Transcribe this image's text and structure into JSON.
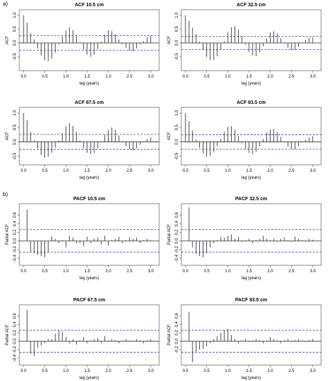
{
  "section_labels": {
    "a": "a)",
    "b": "b)"
  },
  "colors": {
    "ci_line": "#3b3bd6",
    "bars": "#444444",
    "frame": "#555555",
    "zero": "#222222"
  },
  "chart_data": [
    {
      "type": "bar",
      "title": "ACF 10.5 cm",
      "xlabel": "lag (years)",
      "ylabel": "ACF",
      "xlim": [
        0,
        3.1
      ],
      "ylim": [
        -0.9,
        1.1
      ],
      "xticks": [
        0.0,
        0.5,
        1.0,
        1.5,
        2.0,
        2.5,
        3.0
      ],
      "yticks": [
        -0.5,
        0.0,
        0.5,
        1.0
      ],
      "ci": 0.26,
      "lag_step": 0.0833,
      "values": [
        1.0,
        0.73,
        0.35,
        0.12,
        -0.2,
        -0.45,
        -0.62,
        -0.66,
        -0.57,
        -0.35,
        -0.05,
        0.23,
        0.45,
        0.56,
        0.46,
        0.28,
        0.02,
        -0.24,
        -0.42,
        -0.5,
        -0.42,
        -0.22,
        0.05,
        0.3,
        0.46,
        0.42,
        0.32,
        0.13,
        -0.05,
        -0.18,
        -0.28,
        -0.3,
        -0.2,
        -0.05,
        0.07,
        0.2,
        0.25
      ]
    },
    {
      "type": "bar",
      "title": "ACF 32.5 cm",
      "xlabel": "lag (years)",
      "ylabel": "ACF",
      "xlim": [
        0,
        3.1
      ],
      "ylim": [
        -0.9,
        1.1
      ],
      "xticks": [
        0.0,
        0.5,
        1.0,
        1.5,
        2.0,
        2.5,
        3.0
      ],
      "yticks": [
        -0.5,
        0.0,
        0.5,
        1.0
      ],
      "ci": 0.24,
      "lag_step": 0.0833,
      "values": [
        1.0,
        0.8,
        0.55,
        0.32,
        0.05,
        -0.25,
        -0.5,
        -0.62,
        -0.62,
        -0.48,
        -0.23,
        0.07,
        0.38,
        0.57,
        0.6,
        0.48,
        0.25,
        -0.05,
        -0.32,
        -0.45,
        -0.48,
        -0.35,
        -0.12,
        0.15,
        0.38,
        0.42,
        0.35,
        0.18,
        -0.02,
        -0.17,
        -0.25,
        -0.25,
        -0.15,
        -0.02,
        0.1,
        0.18,
        0.2
      ]
    },
    {
      "type": "bar",
      "title": "ACF 67.5 cm",
      "xlabel": "lag (years)",
      "ylabel": "ACF",
      "xlim": [
        0,
        3.1
      ],
      "ylim": [
        -0.7,
        1.1
      ],
      "xticks": [
        0.0,
        0.5,
        1.0,
        1.5,
        2.0,
        2.5,
        3.0
      ],
      "yticks": [
        -0.5,
        0.0,
        0.5,
        1.0
      ],
      "ci": 0.26,
      "lag_step": 0.0833,
      "values": [
        1.0,
        0.75,
        0.35,
        0.05,
        -0.22,
        -0.45,
        -0.55,
        -0.52,
        -0.38,
        -0.2,
        0.05,
        0.3,
        0.55,
        0.65,
        0.55,
        0.35,
        0.05,
        -0.22,
        -0.38,
        -0.42,
        -0.38,
        -0.22,
        0.02,
        0.25,
        0.42,
        0.5,
        0.42,
        0.22,
        0.02,
        -0.15,
        -0.25,
        -0.3,
        -0.22,
        -0.1,
        0.02,
        0.1,
        0.15
      ]
    },
    {
      "type": "bar",
      "title": "ACF 83.5 cm",
      "xlabel": "lag (years)",
      "ylabel": "ACF",
      "xlim": [
        0,
        3.1
      ],
      "ylim": [
        -0.7,
        1.1
      ],
      "xticks": [
        0.0,
        0.5,
        1.0,
        1.5,
        2.0,
        2.5,
        3.0
      ],
      "yticks": [
        -0.5,
        0.0,
        0.5,
        1.0
      ],
      "ci": 0.25,
      "lag_step": 0.0833,
      "values": [
        1.0,
        0.72,
        0.4,
        0.08,
        -0.2,
        -0.4,
        -0.5,
        -0.48,
        -0.35,
        -0.15,
        0.1,
        0.35,
        0.52,
        0.55,
        0.42,
        0.2,
        -0.05,
        -0.25,
        -0.38,
        -0.42,
        -0.35,
        -0.15,
        0.1,
        0.32,
        0.42,
        0.45,
        0.35,
        0.18,
        -0.02,
        -0.17,
        -0.25,
        -0.25,
        -0.15,
        -0.02,
        0.08,
        0.15,
        0.2
      ]
    },
    {
      "type": "bar",
      "title": "PACF 10.5 cm",
      "xlabel": "lag (years)",
      "ylabel": "Partial ACF",
      "xlim": [
        0,
        3.1
      ],
      "ylim": [
        -0.5,
        0.8
      ],
      "xticks": [
        0.0,
        0.5,
        1.0,
        1.5,
        2.0,
        2.5,
        3.0
      ],
      "yticks": [
        -0.4,
        -0.2,
        0.0,
        0.2,
        0.4,
        0.6
      ],
      "ci": 0.26,
      "lag_step": 0.0833,
      "values": [
        0.73,
        -0.25,
        -0.28,
        -0.32,
        -0.35,
        -0.38,
        -0.25,
        0.1,
        0.05,
        -0.05,
        0.02,
        -0.15,
        0.12,
        0.08,
        -0.05,
        -0.05,
        -0.12,
        0.1,
        -0.05,
        0.05,
        0.08,
        -0.08,
        0.12,
        -0.1,
        0.02,
        0.05,
        0.1,
        -0.05,
        0.02,
        0.08,
        0.05,
        0.08,
        -0.05,
        0.02,
        0.05,
        0.02
      ]
    },
    {
      "type": "bar",
      "title": "PACF 32.5 cm",
      "xlabel": "lag (years)",
      "ylabel": "Partial ACF",
      "xlim": [
        0,
        3.1
      ],
      "ylim": [
        -0.5,
        0.8
      ],
      "xticks": [
        0.0,
        0.5,
        1.0,
        1.5,
        2.0,
        2.5,
        3.0
      ],
      "yticks": [
        -0.4,
        -0.2,
        0.0,
        0.2,
        0.4,
        0.6
      ],
      "ci": 0.26,
      "lag_step": 0.0833,
      "values": [
        0.78,
        -0.15,
        -0.3,
        -0.35,
        -0.38,
        -0.28,
        -0.15,
        -0.05,
        0.02,
        0.1,
        0.08,
        0.12,
        0.15,
        0.05,
        0.1,
        -0.02,
        0.02,
        0.05,
        -0.05,
        0.02,
        0.05,
        0.12,
        0.05,
        0.02,
        0.05,
        -0.02,
        0.05,
        0.08,
        0.02,
        -0.02,
        0.1,
        0.05,
        0.02,
        -0.02,
        0.05,
        0.03
      ]
    },
    {
      "type": "bar",
      "title": "PACF 67.5 cm",
      "xlabel": "lag (years)",
      "ylabel": "Partial ACF",
      "xlim": [
        0,
        3.1
      ],
      "ylim": [
        -0.5,
        0.8
      ],
      "xticks": [
        0.0,
        0.5,
        1.0,
        1.5,
        2.0,
        2.5,
        3.0
      ],
      "yticks": [
        -0.4,
        -0.2,
        0.0,
        0.2,
        0.4,
        0.6
      ],
      "ci": 0.26,
      "lag_step": 0.0833,
      "values": [
        0.75,
        -0.3,
        -0.35,
        -0.15,
        -0.1,
        -0.05,
        0.05,
        0.05,
        0.18,
        0.25,
        0.22,
        0.1,
        -0.05,
        0.05,
        -0.08,
        0.02,
        0.1,
        -0.05,
        0.02,
        0.05,
        0.08,
        -0.05,
        0.12,
        0.02,
        0.05,
        0.02,
        -0.05,
        0.02,
        0.05,
        -0.02,
        0.02,
        0.05,
        0.02,
        -0.05,
        0.02,
        0.05
      ]
    },
    {
      "type": "bar",
      "title": "PACF 83.5 cm",
      "xlabel": "lag (years)",
      "ylabel": "Partial ACF",
      "xlim": [
        0,
        3.1
      ],
      "ylim": [
        -0.5,
        0.8
      ],
      "xticks": [
        0.0,
        0.5,
        1.0,
        1.5,
        2.0,
        2.5,
        3.0
      ],
      "yticks": [
        -0.2,
        0.0,
        0.2,
        0.4,
        0.6
      ],
      "ci": 0.26,
      "lag_step": 0.0833,
      "values": [
        0.7,
        -0.5,
        -0.25,
        -0.2,
        -0.18,
        -0.12,
        -0.05,
        0.05,
        0.12,
        0.2,
        0.25,
        0.3,
        0.15,
        0.05,
        -0.05,
        0.02,
        0.05,
        -0.02,
        0.02,
        0.05,
        0.02,
        -0.05,
        0.02,
        0.1,
        0.05,
        0.02,
        -0.05,
        0.02,
        0.05,
        -0.02,
        0.03,
        0.05,
        0.02,
        -0.02,
        0.03,
        0.05
      ]
    }
  ]
}
